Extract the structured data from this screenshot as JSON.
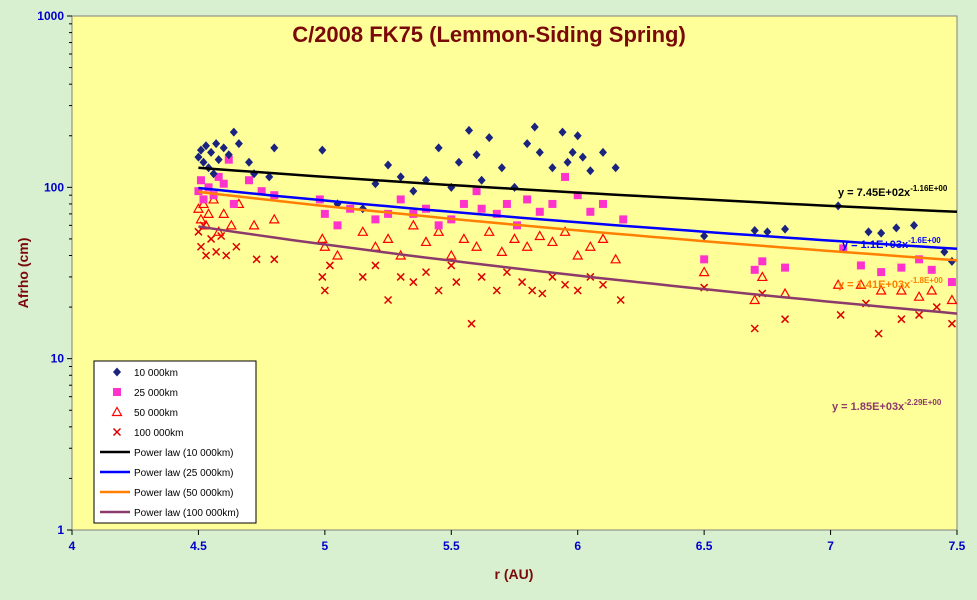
{
  "colors": {
    "outer_background": "#d8efd0",
    "plot_background": "#ffff99",
    "title": "#7a0a0a",
    "axis_text": "#0000cc",
    "ylabel_text": "#7a0a0a",
    "xlabel_text": "#7a0a0a",
    "series_10000": "#1a237e",
    "series_25000": "#ff33cc",
    "series_50000": "#ff0000",
    "series_100000": "#dd0000",
    "fit_10000": "#000000",
    "fit_25000": "#0000ff",
    "fit_50000": "#ff7f00",
    "fit_100000": "#8b3a6b"
  },
  "chart_data": {
    "type": "scatter",
    "title": "C/2008 FK75 (Lemmon-Siding Spring)",
    "xlabel": "r (AU)",
    "ylabel": "Afrho (cm)",
    "xlim": [
      4,
      7.5
    ],
    "ylim": [
      1,
      1000
    ],
    "yscale": "log",
    "x_ticks": [
      "4",
      "4.5",
      "5",
      "5.5",
      "6",
      "6.5",
      "7",
      "7.5"
    ],
    "y_ticks": [
      "1",
      "10",
      "100",
      "1000"
    ],
    "grid": false,
    "legend_position": "bottom-left",
    "series": [
      {
        "name": "10 000km",
        "marker": "diamond",
        "points": [
          [
            4.5,
            150
          ],
          [
            4.51,
            165
          ],
          [
            4.52,
            140
          ],
          [
            4.53,
            175
          ],
          [
            4.54,
            130
          ],
          [
            4.55,
            160
          ],
          [
            4.56,
            120
          ],
          [
            4.57,
            180
          ],
          [
            4.58,
            145
          ],
          [
            4.6,
            170
          ],
          [
            4.62,
            155
          ],
          [
            4.64,
            210
          ],
          [
            4.66,
            180
          ],
          [
            4.7,
            140
          ],
          [
            4.72,
            120
          ],
          [
            4.78,
            115
          ],
          [
            4.8,
            170
          ],
          [
            4.99,
            165
          ],
          [
            5.05,
            80
          ],
          [
            5.15,
            75
          ],
          [
            5.2,
            105
          ],
          [
            5.25,
            135
          ],
          [
            5.3,
            115
          ],
          [
            5.35,
            95
          ],
          [
            5.4,
            110
          ],
          [
            5.45,
            170
          ],
          [
            5.5,
            100
          ],
          [
            5.53,
            140
          ],
          [
            5.57,
            215
          ],
          [
            5.6,
            155
          ],
          [
            5.62,
            110
          ],
          [
            5.65,
            195
          ],
          [
            5.7,
            130
          ],
          [
            5.75,
            100
          ],
          [
            5.8,
            180
          ],
          [
            5.83,
            225
          ],
          [
            5.85,
            160
          ],
          [
            5.9,
            130
          ],
          [
            5.94,
            210
          ],
          [
            5.96,
            140
          ],
          [
            5.98,
            160
          ],
          [
            6.0,
            200
          ],
          [
            6.02,
            150
          ],
          [
            6.05,
            125
          ],
          [
            6.1,
            160
          ],
          [
            6.15,
            130
          ],
          [
            6.5,
            52
          ],
          [
            6.7,
            56
          ],
          [
            6.75,
            55
          ],
          [
            6.82,
            57
          ],
          [
            7.03,
            78
          ],
          [
            7.15,
            55
          ],
          [
            7.2,
            54
          ],
          [
            7.26,
            58
          ],
          [
            7.33,
            60
          ],
          [
            7.45,
            42
          ],
          [
            7.48,
            37
          ]
        ]
      },
      {
        "name": "25 000km",
        "marker": "square",
        "points": [
          [
            4.5,
            95
          ],
          [
            4.51,
            110
          ],
          [
            4.52,
            85
          ],
          [
            4.54,
            100
          ],
          [
            4.56,
            90
          ],
          [
            4.58,
            115
          ],
          [
            4.6,
            105
          ],
          [
            4.62,
            145
          ],
          [
            4.64,
            80
          ],
          [
            4.7,
            110
          ],
          [
            4.75,
            95
          ],
          [
            4.8,
            90
          ],
          [
            4.98,
            85
          ],
          [
            5.0,
            70
          ],
          [
            5.05,
            60
          ],
          [
            5.1,
            75
          ],
          [
            5.2,
            65
          ],
          [
            5.25,
            70
          ],
          [
            5.3,
            85
          ],
          [
            5.35,
            70
          ],
          [
            5.4,
            75
          ],
          [
            5.45,
            60
          ],
          [
            5.5,
            65
          ],
          [
            5.55,
            80
          ],
          [
            5.6,
            95
          ],
          [
            5.62,
            75
          ],
          [
            5.68,
            70
          ],
          [
            5.72,
            80
          ],
          [
            5.76,
            60
          ],
          [
            5.8,
            85
          ],
          [
            5.85,
            72
          ],
          [
            5.9,
            80
          ],
          [
            5.95,
            115
          ],
          [
            6.0,
            90
          ],
          [
            6.05,
            72
          ],
          [
            6.1,
            80
          ],
          [
            6.18,
            65
          ],
          [
            6.5,
            38
          ],
          [
            6.7,
            33
          ],
          [
            6.73,
            37
          ],
          [
            6.82,
            34
          ],
          [
            7.05,
            44
          ],
          [
            7.12,
            35
          ],
          [
            7.2,
            32
          ],
          [
            7.28,
            34
          ],
          [
            7.35,
            38
          ],
          [
            7.4,
            33
          ],
          [
            7.48,
            28
          ]
        ]
      },
      {
        "name": "50 000km",
        "marker": "triangle",
        "points": [
          [
            4.5,
            75
          ],
          [
            4.51,
            65
          ],
          [
            4.52,
            80
          ],
          [
            4.53,
            60
          ],
          [
            4.54,
            70
          ],
          [
            4.56,
            85
          ],
          [
            4.58,
            55
          ],
          [
            4.6,
            70
          ],
          [
            4.63,
            60
          ],
          [
            4.66,
            80
          ],
          [
            4.72,
            60
          ],
          [
            4.8,
            65
          ],
          [
            4.99,
            50
          ],
          [
            5.0,
            45
          ],
          [
            5.05,
            40
          ],
          [
            5.15,
            55
          ],
          [
            5.2,
            45
          ],
          [
            5.25,
            50
          ],
          [
            5.3,
            40
          ],
          [
            5.35,
            60
          ],
          [
            5.4,
            48
          ],
          [
            5.45,
            55
          ],
          [
            5.5,
            40
          ],
          [
            5.55,
            50
          ],
          [
            5.6,
            45
          ],
          [
            5.65,
            55
          ],
          [
            5.7,
            42
          ],
          [
            5.75,
            50
          ],
          [
            5.8,
            45
          ],
          [
            5.85,
            52
          ],
          [
            5.9,
            48
          ],
          [
            5.95,
            55
          ],
          [
            6.0,
            40
          ],
          [
            6.05,
            45
          ],
          [
            6.1,
            50
          ],
          [
            6.15,
            38
          ],
          [
            6.5,
            32
          ],
          [
            6.7,
            22
          ],
          [
            6.73,
            30
          ],
          [
            6.82,
            24
          ],
          [
            7.03,
            27
          ],
          [
            7.12,
            27
          ],
          [
            7.2,
            25
          ],
          [
            7.28,
            25
          ],
          [
            7.35,
            23
          ],
          [
            7.4,
            25
          ],
          [
            7.48,
            22
          ]
        ]
      },
      {
        "name": "100 000km",
        "marker": "x",
        "points": [
          [
            4.5,
            55
          ],
          [
            4.51,
            45
          ],
          [
            4.52,
            60
          ],
          [
            4.53,
            40
          ],
          [
            4.55,
            50
          ],
          [
            4.57,
            42
          ],
          [
            4.59,
            52
          ],
          [
            4.61,
            40
          ],
          [
            4.65,
            45
          ],
          [
            4.73,
            38
          ],
          [
            4.8,
            38
          ],
          [
            4.99,
            30
          ],
          [
            5.0,
            25
          ],
          [
            5.02,
            35
          ],
          [
            5.15,
            30
          ],
          [
            5.2,
            35
          ],
          [
            5.25,
            22
          ],
          [
            5.3,
            30
          ],
          [
            5.35,
            28
          ],
          [
            5.4,
            32
          ],
          [
            5.45,
            25
          ],
          [
            5.5,
            35
          ],
          [
            5.52,
            28
          ],
          [
            5.58,
            16
          ],
          [
            5.62,
            30
          ],
          [
            5.68,
            25
          ],
          [
            5.72,
            32
          ],
          [
            5.78,
            28
          ],
          [
            5.82,
            25
          ],
          [
            5.86,
            24
          ],
          [
            5.9,
            30
          ],
          [
            5.95,
            27
          ],
          [
            6.0,
            25
          ],
          [
            6.05,
            30
          ],
          [
            6.1,
            27
          ],
          [
            6.17,
            22
          ],
          [
            6.5,
            26
          ],
          [
            6.7,
            15
          ],
          [
            6.73,
            24
          ],
          [
            6.82,
            17
          ],
          [
            7.04,
            18
          ],
          [
            7.14,
            21
          ],
          [
            7.19,
            14
          ],
          [
            7.28,
            17
          ],
          [
            7.35,
            18
          ],
          [
            7.42,
            20
          ],
          [
            7.48,
            16
          ]
        ]
      }
    ],
    "fits": [
      {
        "name": "Power law (10 000km)",
        "a": 745,
        "b": -1.16,
        "x_range": [
          4.5,
          7.5
        ]
      },
      {
        "name": "Power law (25 000km)",
        "a": 1100,
        "b": -1.6,
        "x_range": [
          4.5,
          7.5
        ]
      },
      {
        "name": "Power law (50 000km)",
        "a": 1410,
        "b": -1.8,
        "x_range": [
          4.5,
          7.5
        ]
      },
      {
        "name": "Power law (100 000km)",
        "a": 1850,
        "b": -2.29,
        "x_range": [
          4.5,
          7.5
        ]
      }
    ],
    "equations": [
      {
        "text": "y = 7.45E+02x",
        "exp": "-1.16E+00",
        "color_key": "fit_10000"
      },
      {
        "text": "y = 1.1E+03x",
        "exp": "-1.6E+00",
        "color_key": "fit_25000"
      },
      {
        "text": "y = 1.41E+03x",
        "exp": "-1.8E+00",
        "color_key": "fit_50000"
      },
      {
        "text": "y = 1.85E+03x",
        "exp": "-2.29E+00",
        "color_key": "fit_100000"
      }
    ]
  }
}
